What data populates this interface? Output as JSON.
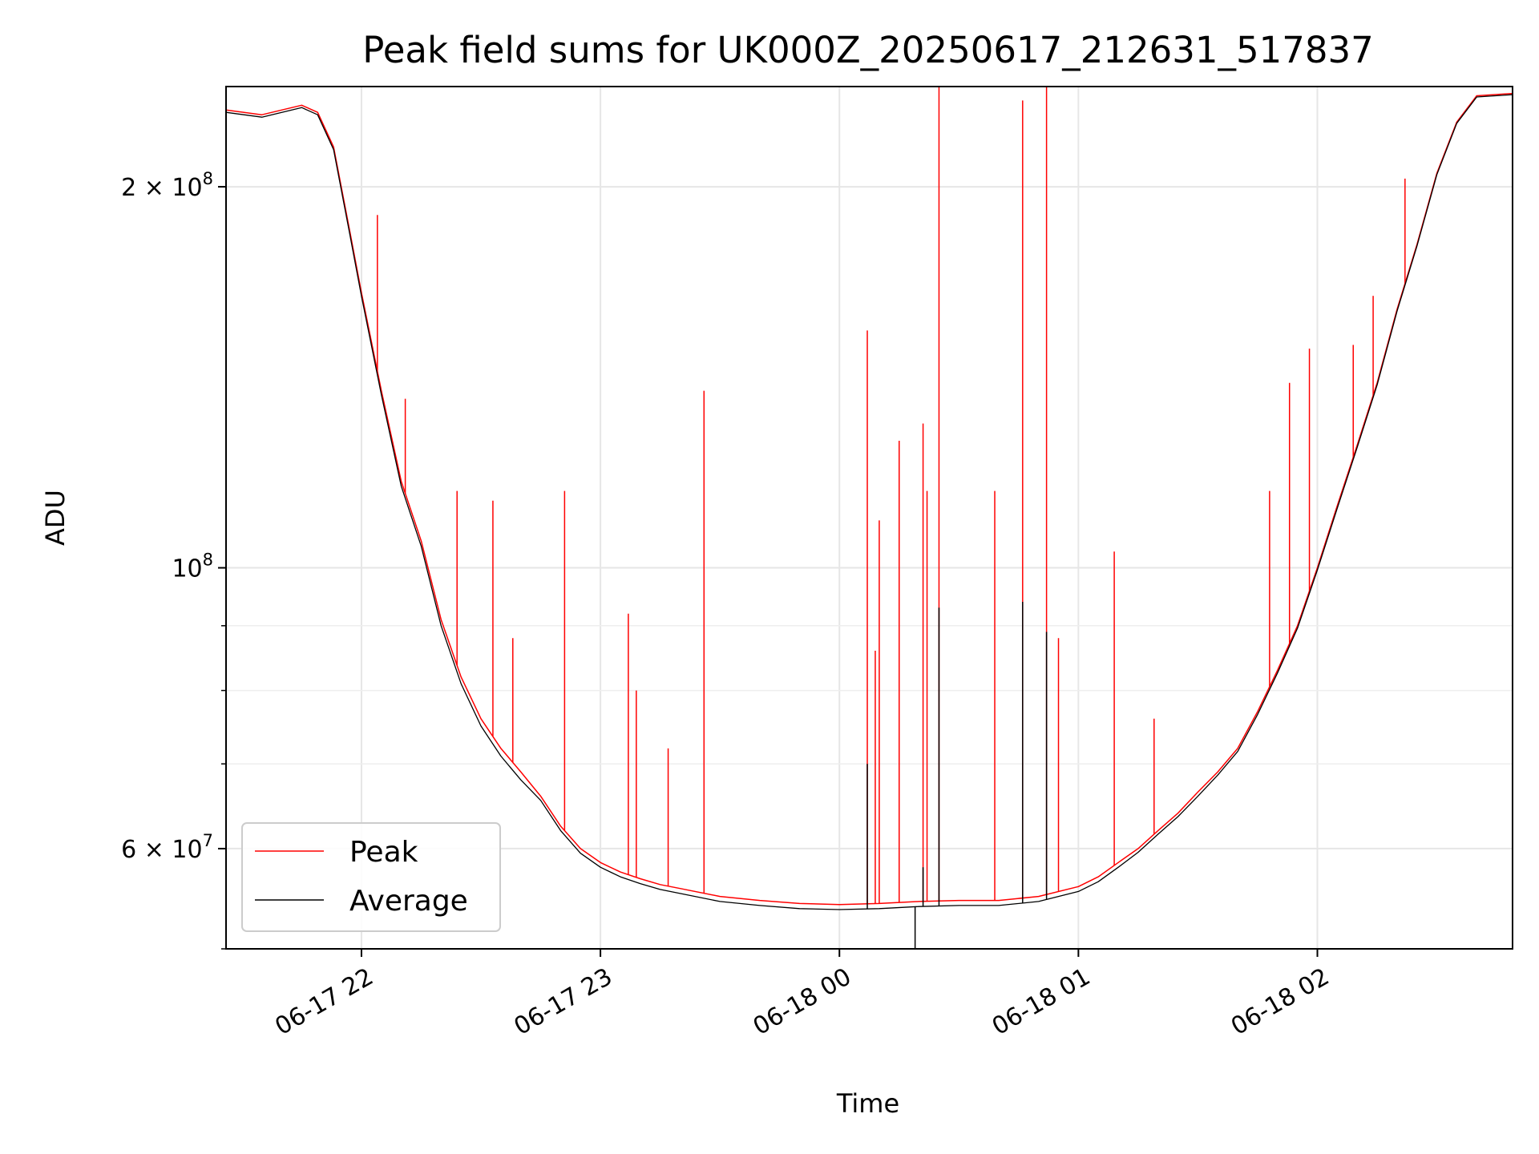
{
  "chart_data": {
    "type": "line",
    "title": "Peak field sums for UK000Z_20250617_212631_517837",
    "xlabel": "Time",
    "ylabel": "ADU",
    "yscale": "log",
    "xlim": [
      "2025-06-17 21:26",
      "2025-06-18 02:49"
    ],
    "ylim": [
      50000000,
      240000000
    ],
    "grid": true,
    "legend_position": "lower-left",
    "x_ticks": [
      {
        "value": "2025-06-17 22:00",
        "label": "06-17 22"
      },
      {
        "value": "2025-06-17 23:00",
        "label": "06-17 23"
      },
      {
        "value": "2025-06-18 00:00",
        "label": "06-18 00"
      },
      {
        "value": "2025-06-18 01:00",
        "label": "06-18 01"
      },
      {
        "value": "2025-06-18 02:00",
        "label": "06-18 02"
      }
    ],
    "y_ticks": [
      {
        "value": 60000000,
        "label": "6 × 10",
        "exponent": "7"
      },
      {
        "value": 100000000,
        "label": "10",
        "exponent": "8"
      },
      {
        "value": 200000000,
        "label": "2 × 10",
        "exponent": "8"
      }
    ],
    "y_minor_ticks": [
      50000000,
      70000000,
      80000000,
      90000000
    ],
    "series": [
      {
        "name": "Peak",
        "color": "#ff0000",
        "x": [
          "2025-06-17 21:26",
          "2025-06-17 21:35",
          "2025-06-17 21:45",
          "2025-06-17 21:49",
          "2025-06-17 21:53",
          "2025-06-17 21:57",
          "2025-06-17 22:00",
          "2025-06-17 22:05",
          "2025-06-17 22:10",
          "2025-06-17 22:15",
          "2025-06-17 22:20",
          "2025-06-17 22:25",
          "2025-06-17 22:30",
          "2025-06-17 22:35",
          "2025-06-17 22:40",
          "2025-06-17 22:45",
          "2025-06-17 22:50",
          "2025-06-17 22:55",
          "2025-06-17 23:00",
          "2025-06-17 23:05",
          "2025-06-17 23:10",
          "2025-06-17 23:15",
          "2025-06-17 23:20",
          "2025-06-17 23:30",
          "2025-06-17 23:40",
          "2025-06-17 23:50",
          "2025-06-18 00:00",
          "2025-06-18 00:10",
          "2025-06-18 00:20",
          "2025-06-18 00:30",
          "2025-06-18 00:40",
          "2025-06-18 00:50",
          "2025-06-18 01:00",
          "2025-06-18 01:05",
          "2025-06-18 01:10",
          "2025-06-18 01:15",
          "2025-06-18 01:20",
          "2025-06-18 01:25",
          "2025-06-18 01:30",
          "2025-06-18 01:35",
          "2025-06-18 01:40",
          "2025-06-18 01:45",
          "2025-06-18 01:50",
          "2025-06-18 01:55",
          "2025-06-18 02:00",
          "2025-06-18 02:05",
          "2025-06-18 02:10",
          "2025-06-18 02:15",
          "2025-06-18 02:20",
          "2025-06-18 02:25",
          "2025-06-18 02:30",
          "2025-06-18 02:35",
          "2025-06-18 02:40",
          "2025-06-18 02:49"
        ],
        "values": [
          230000000,
          228000000,
          232000000,
          229000000,
          215000000,
          185000000,
          165000000,
          138000000,
          117000000,
          105000000,
          91000000,
          82000000,
          76000000,
          72000000,
          69000000,
          66000000,
          62500000,
          60000000,
          58500000,
          57500000,
          56800000,
          56200000,
          55800000,
          55000000,
          54600000,
          54300000,
          54200000,
          54300000,
          54500000,
          54600000,
          54600000,
          55000000,
          56000000,
          57000000,
          58500000,
          60000000,
          62000000,
          64000000,
          66500000,
          69000000,
          72000000,
          77000000,
          83000000,
          90000000,
          100000000,
          112000000,
          125000000,
          140000000,
          160000000,
          180000000,
          205000000,
          225000000,
          236000000,
          237000000
        ],
        "spikes": [
          {
            "x": "2025-06-17 22:04",
            "y": 190000000
          },
          {
            "x": "2025-06-17 22:11",
            "y": 136000000
          },
          {
            "x": "2025-06-17 22:24",
            "y": 115000000
          },
          {
            "x": "2025-06-17 22:33",
            "y": 113000000
          },
          {
            "x": "2025-06-17 22:38",
            "y": 88000000
          },
          {
            "x": "2025-06-17 22:51",
            "y": 115000000
          },
          {
            "x": "2025-06-17 23:07",
            "y": 92000000
          },
          {
            "x": "2025-06-17 23:09",
            "y": 80000000
          },
          {
            "x": "2025-06-17 23:17",
            "y": 72000000
          },
          {
            "x": "2025-06-17 23:26",
            "y": 138000000
          },
          {
            "x": "2025-06-18 00:07",
            "y": 154000000
          },
          {
            "x": "2025-06-18 00:09",
            "y": 86000000
          },
          {
            "x": "2025-06-18 00:10",
            "y": 109000000
          },
          {
            "x": "2025-06-18 00:15",
            "y": 126000000
          },
          {
            "x": "2025-06-18 00:21",
            "y": 130000000
          },
          {
            "x": "2025-06-18 00:22",
            "y": 115000000
          },
          {
            "x": "2025-06-18 00:25",
            "y": 240000000
          },
          {
            "x": "2025-06-18 00:39",
            "y": 115000000
          },
          {
            "x": "2025-06-18 00:46",
            "y": 234000000
          },
          {
            "x": "2025-06-18 00:52",
            "y": 240000000
          },
          {
            "x": "2025-06-18 00:55",
            "y": 88000000
          },
          {
            "x": "2025-06-18 01:09",
            "y": 103000000
          },
          {
            "x": "2025-06-18 01:19",
            "y": 76000000
          },
          {
            "x": "2025-06-18 01:48",
            "y": 115000000
          },
          {
            "x": "2025-06-18 01:53",
            "y": 140000000
          },
          {
            "x": "2025-06-18 01:58",
            "y": 149000000
          },
          {
            "x": "2025-06-18 02:09",
            "y": 150000000
          },
          {
            "x": "2025-06-18 02:14",
            "y": 164000000
          },
          {
            "x": "2025-06-18 02:22",
            "y": 203000000
          }
        ]
      },
      {
        "name": "Average",
        "color": "#000000",
        "x": [
          "2025-06-17 21:26",
          "2025-06-17 21:35",
          "2025-06-17 21:45",
          "2025-06-17 21:49",
          "2025-06-17 21:53",
          "2025-06-17 21:57",
          "2025-06-17 22:00",
          "2025-06-17 22:05",
          "2025-06-17 22:10",
          "2025-06-17 22:15",
          "2025-06-17 22:20",
          "2025-06-17 22:25",
          "2025-06-17 22:30",
          "2025-06-17 22:35",
          "2025-06-17 22:40",
          "2025-06-17 22:45",
          "2025-06-17 22:50",
          "2025-06-17 22:55",
          "2025-06-17 23:00",
          "2025-06-17 23:05",
          "2025-06-17 23:10",
          "2025-06-17 23:15",
          "2025-06-17 23:20",
          "2025-06-17 23:30",
          "2025-06-17 23:40",
          "2025-06-17 23:50",
          "2025-06-18 00:00",
          "2025-06-18 00:10",
          "2025-06-18 00:20",
          "2025-06-18 00:30",
          "2025-06-18 00:40",
          "2025-06-18 00:50",
          "2025-06-18 01:00",
          "2025-06-18 01:05",
          "2025-06-18 01:10",
          "2025-06-18 01:15",
          "2025-06-18 01:20",
          "2025-06-18 01:25",
          "2025-06-18 01:30",
          "2025-06-18 01:35",
          "2025-06-18 01:40",
          "2025-06-18 01:45",
          "2025-06-18 01:50",
          "2025-06-18 01:55",
          "2025-06-18 02:00",
          "2025-06-18 02:05",
          "2025-06-18 02:10",
          "2025-06-18 02:15",
          "2025-06-18 02:20",
          "2025-06-18 02:25",
          "2025-06-18 02:30",
          "2025-06-18 02:35",
          "2025-06-18 02:40",
          "2025-06-18 02:49"
        ],
        "values": [
          229000000,
          227000000,
          231000000,
          228000000,
          214000000,
          184000000,
          164000000,
          137000000,
          116000000,
          104000000,
          90000000,
          81000000,
          75000000,
          71000000,
          68000000,
          65500000,
          62000000,
          59500000,
          58000000,
          57000000,
          56300000,
          55700000,
          55300000,
          54500000,
          54100000,
          53800000,
          53700000,
          53800000,
          54000000,
          54100000,
          54100000,
          54500000,
          55500000,
          56500000,
          58000000,
          59600000,
          61600000,
          63600000,
          66000000,
          68600000,
          71600000,
          76600000,
          82600000,
          89600000,
          99600000,
          111500000,
          124500000,
          139500000,
          159500000,
          179500000,
          204500000,
          224500000,
          235500000,
          236500000
        ],
        "spikes": [
          {
            "x": "2025-06-18 00:07",
            "y": 70000000
          },
          {
            "x": "2025-06-18 00:21",
            "y": 58000000
          },
          {
            "x": "2025-06-18 00:25",
            "y": 93000000
          },
          {
            "x": "2025-06-18 00:46",
            "y": 94000000
          },
          {
            "x": "2025-06-18 00:52",
            "y": 89000000
          },
          {
            "x": "2025-06-18 00:19",
            "y": 49000000
          }
        ]
      }
    ]
  }
}
